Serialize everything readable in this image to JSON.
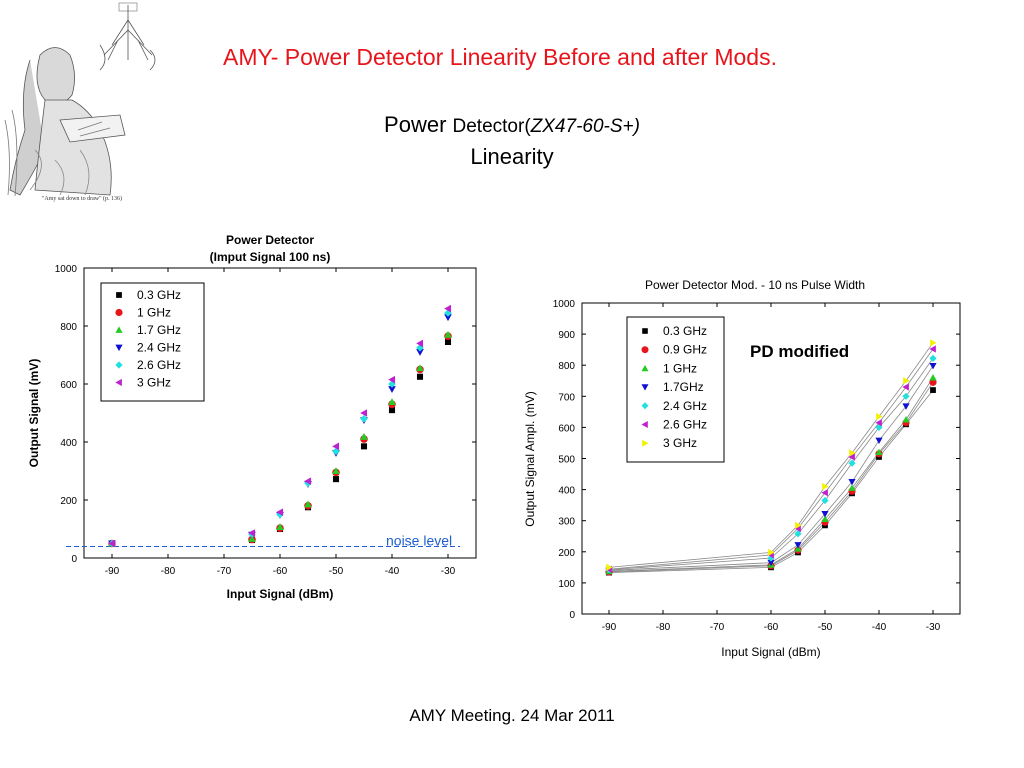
{
  "slide": {
    "title": "AMY- Power Detector Linearity Before and after Mods.",
    "subtitle_power": "Power",
    "subtitle_detector": "Detector(",
    "subtitle_model": "ZX47-60-S+)",
    "subtitle_line2": "Linearity",
    "footer": "AMY Meeting. 24 Mar 2011",
    "illustration_caption": "\"Amy sat down to draw\" (p. 136)"
  },
  "chart_data": [
    {
      "type": "scatter",
      "title": "Power Detector",
      "subtitle": "(Imput Signal 100 ns)",
      "xlabel": "Input Signal (dBm)",
      "ylabel": "Output Signal (mV)",
      "xlim": [
        -95,
        -25
      ],
      "ylim": [
        0,
        1000
      ],
      "xticks": [
        -90,
        -80,
        -70,
        -60,
        -50,
        -40,
        -30
      ],
      "yticks": [
        0,
        200,
        400,
        600,
        800,
        1000
      ],
      "grid": false,
      "legend_position": "top-left",
      "x": [
        -90,
        -65,
        -60,
        -55,
        -50,
        -45,
        -40,
        -35,
        -30
      ],
      "series": [
        {
          "name": "0.3 GHz",
          "marker": "square",
          "color": "#000000",
          "values": [
            50,
            62,
            100,
            175,
            272,
            385,
            510,
            625,
            745
          ]
        },
        {
          "name": "1  GHz",
          "marker": "circle",
          "color": "#e8141b",
          "values": [
            50,
            64,
            103,
            180,
            295,
            410,
            530,
            650,
            765
          ]
        },
        {
          "name": "1.7 GHz",
          "marker": "triangle-up",
          "color": "#22cc22",
          "values": [
            50,
            66,
            107,
            185,
            300,
            418,
            538,
            655,
            770
          ]
        },
        {
          "name": "2.4 GHz",
          "marker": "triangle-down",
          "color": "#1010d0",
          "values": [
            50,
            80,
            148,
            255,
            362,
            475,
            582,
            710,
            830
          ]
        },
        {
          "name": "2.6 GHz",
          "marker": "diamond",
          "color": "#22e0e0",
          "values": [
            50,
            82,
            150,
            258,
            368,
            480,
            600,
            725,
            845
          ]
        },
        {
          "name": "3  GHz",
          "marker": "triangle-left",
          "color": "#c020d0",
          "values": [
            50,
            86,
            158,
            265,
            385,
            500,
            615,
            740,
            860
          ]
        }
      ],
      "annotation": {
        "text": "noise level",
        "y": 50,
        "color": "#1f5fd0"
      }
    },
    {
      "type": "line",
      "title": "Power Detector Mod. - 10 ns Pulse Width",
      "xlabel": "Input Signal (dBm)",
      "ylabel": "Output Signal Ampl. (mV)",
      "xlim": [
        -95,
        -25
      ],
      "ylim": [
        0,
        1000
      ],
      "xticks": [
        -90,
        -80,
        -70,
        -60,
        -50,
        -40,
        -30
      ],
      "yticks": [
        0,
        100,
        200,
        300,
        400,
        500,
        600,
        700,
        800,
        900,
        1000
      ],
      "grid": false,
      "legend_position": "top-left",
      "annotation": {
        "text": "PD modified"
      },
      "x": [
        -90,
        -60,
        -55,
        -50,
        -45,
        -40,
        -35,
        -30
      ],
      "series": [
        {
          "name": "0.3 GHz",
          "marker": "square",
          "color": "#000000",
          "values": [
            133,
            150,
            198,
            285,
            388,
            505,
            610,
            720
          ]
        },
        {
          "name": "0.9 GHz",
          "marker": "circle",
          "color": "#e8141b",
          "values": [
            135,
            155,
            205,
            295,
            395,
            515,
            615,
            745
          ]
        },
        {
          "name": "1 GHz",
          "marker": "triangle-up",
          "color": "#22cc22",
          "values": [
            137,
            158,
            210,
            305,
            405,
            520,
            625,
            760
          ]
        },
        {
          "name": "1.7GHz",
          "marker": "triangle-down",
          "color": "#1010d0",
          "values": [
            140,
            165,
            222,
            322,
            425,
            558,
            668,
            798
          ]
        },
        {
          "name": "2.4 GHz",
          "marker": "diamond",
          "color": "#22e0e0",
          "values": [
            142,
            180,
            258,
            365,
            485,
            600,
            700,
            822
          ]
        },
        {
          "name": "2.6 GHz",
          "marker": "triangle-left",
          "color": "#c020d0",
          "values": [
            144,
            190,
            275,
            390,
            505,
            615,
            730,
            852
          ]
        },
        {
          "name": "3 GHz",
          "marker": "triangle-right",
          "color": "#f2f200",
          "values": [
            150,
            198,
            285,
            410,
            518,
            635,
            750,
            872
          ]
        }
      ]
    }
  ]
}
